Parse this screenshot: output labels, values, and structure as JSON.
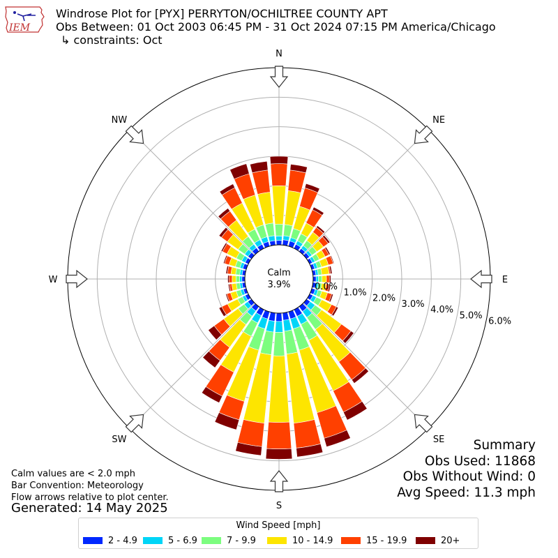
{
  "header": {
    "line1": "Windrose Plot for [PYX] PERRYTON/OCHILTREE COUNTY APT",
    "line2": "Obs Between: 01 Oct 2003 06:45 PM - 31 Oct 2024 07:15 PM America/Chicago",
    "line3": "↳ constraints: Oct"
  },
  "logo": {
    "text": "IEM"
  },
  "notes": {
    "calm_def": "Calm values are < 2.0 mph",
    "bar_convention": "Bar Convention: Meteorology",
    "flow": "Flow arrows relative to plot center.",
    "generated": "Generated: 14 May 2025"
  },
  "summary": {
    "title": "Summary",
    "obs_used": "Obs Used: 11868",
    "obs_without_wind": "Obs Without Wind: 0",
    "avg_speed": "Avg Speed: 11.3 mph"
  },
  "legend": {
    "title": "Wind Speed [mph]"
  },
  "colors": {
    "bins": [
      "#0028ff",
      "#00d5f7",
      "#7cfd7f",
      "#fde500",
      "#ff4000",
      "#7f0000"
    ]
  },
  "chart_data": {
    "type": "windrose",
    "calm_label": "Calm",
    "calm_value": "3.9%",
    "calm_percent": 3.9,
    "speed_bins": [
      "2 - 4.9",
      "5 - 6.9",
      "7 - 9.9",
      "10 - 14.9",
      "15 - 19.9",
      "20+"
    ],
    "radial_labels": [
      "0.0%",
      "1.0%",
      "2.0%",
      "3.0%",
      "4.0%",
      "5.0%",
      "6.0%"
    ],
    "radial_max_percent": 6.0,
    "compass_labels": [
      "N",
      "NE",
      "E",
      "SE",
      "S",
      "SW",
      "W",
      "NW"
    ],
    "directions_deg": [
      0,
      10,
      20,
      30,
      40,
      50,
      60,
      70,
      80,
      90,
      100,
      110,
      120,
      130,
      140,
      150,
      160,
      170,
      180,
      190,
      200,
      210,
      220,
      230,
      240,
      250,
      260,
      270,
      280,
      290,
      300,
      310,
      320,
      330,
      340,
      350
    ],
    "cumulative_percent": [
      [
        0.15,
        0.3,
        0.7,
        2.0,
        2.75,
        3.0
      ],
      [
        0.18,
        0.32,
        0.7,
        1.85,
        2.55,
        2.75
      ],
      [
        0.18,
        0.3,
        0.62,
        1.4,
        2.05,
        2.2
      ],
      [
        0.15,
        0.28,
        0.55,
        0.95,
        1.45,
        1.55
      ],
      [
        0.12,
        0.24,
        0.45,
        0.8,
        1.0,
        1.07
      ],
      [
        0.12,
        0.22,
        0.42,
        0.7,
        0.9,
        0.97
      ],
      [
        0.1,
        0.2,
        0.36,
        0.58,
        0.72,
        0.77
      ],
      [
        0.1,
        0.2,
        0.34,
        0.58,
        0.75,
        0.78
      ],
      [
        0.1,
        0.18,
        0.3,
        0.55,
        0.6,
        0.65
      ],
      [
        0.1,
        0.18,
        0.3,
        0.45,
        0.55,
        0.6
      ],
      [
        0.1,
        0.18,
        0.3,
        0.45,
        0.55,
        0.6
      ],
      [
        0.12,
        0.22,
        0.35,
        0.55,
        0.7,
        0.75
      ],
      [
        0.12,
        0.25,
        0.45,
        0.82,
        1.0,
        1.07
      ],
      [
        0.15,
        0.35,
        0.62,
        1.45,
        1.85,
        1.97
      ],
      [
        0.2,
        0.45,
        0.95,
        2.3,
        3.05,
        3.2
      ],
      [
        0.25,
        0.55,
        1.15,
        3.05,
        3.85,
        4.15
      ],
      [
        0.25,
        0.6,
        1.35,
        3.55,
        4.45,
        4.75
      ],
      [
        0.25,
        0.62,
        1.4,
        3.75,
        4.6,
        4.9
      ],
      [
        0.28,
        0.65,
        1.45,
        3.7,
        4.6,
        4.95
      ],
      [
        0.28,
        0.65,
        1.42,
        3.75,
        4.55,
        4.85
      ],
      [
        0.25,
        0.6,
        1.35,
        3.15,
        3.8,
        4.15
      ],
      [
        0.22,
        0.5,
        1.0,
        2.35,
        3.25,
        3.5
      ],
      [
        0.18,
        0.4,
        0.75,
        1.7,
        2.25,
        2.55
      ],
      [
        0.15,
        0.3,
        0.55,
        1.15,
        1.55,
        1.8
      ],
      [
        0.12,
        0.22,
        0.4,
        0.78,
        1.0,
        1.1
      ],
      [
        0.1,
        0.2,
        0.35,
        0.55,
        0.68,
        0.72
      ],
      [
        0.1,
        0.18,
        0.3,
        0.45,
        0.53,
        0.57
      ],
      [
        0.1,
        0.18,
        0.3,
        0.43,
        0.53,
        0.58
      ],
      [
        0.1,
        0.18,
        0.32,
        0.48,
        0.6,
        0.65
      ],
      [
        0.12,
        0.22,
        0.38,
        0.6,
        0.76,
        0.8
      ],
      [
        0.12,
        0.25,
        0.45,
        0.8,
        0.97,
        1.02
      ],
      [
        0.14,
        0.28,
        0.55,
        1.0,
        1.25,
        1.35
      ],
      [
        0.15,
        0.3,
        0.62,
        1.3,
        1.68,
        1.8
      ],
      [
        0.15,
        0.32,
        0.72,
        1.7,
        2.28,
        2.42
      ],
      [
        0.16,
        0.33,
        0.75,
        1.8,
        2.55,
        2.9
      ],
      [
        0.15,
        0.32,
        0.75,
        1.8,
        2.55,
        2.85
      ]
    ]
  }
}
